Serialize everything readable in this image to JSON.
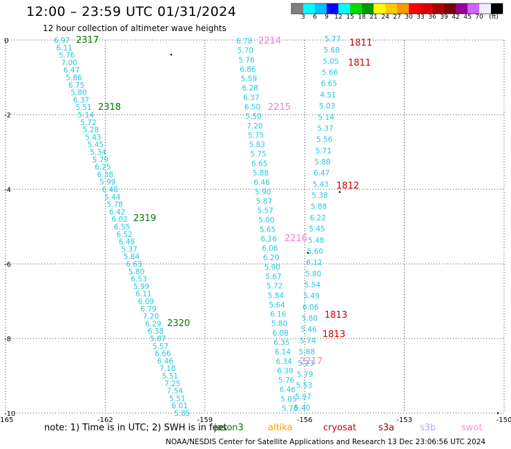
{
  "header": {
    "title": "12:00 – 23:59 UTC 01/31/2024",
    "subtitle": "12 hour collection of altimeter wave heights"
  },
  "colorbar": {
    "colors": [
      "#808080",
      "#00ffff",
      "#00c0ff",
      "#0000ff",
      "#00ffff",
      "#00dd00",
      "#009900",
      "#ffff00",
      "#ffcc00",
      "#ff9900",
      "#ff0000",
      "#dd0000",
      "#aa0000",
      "#770000",
      "#990099",
      "#cc66ff",
      "#eeeeff",
      "#000000"
    ],
    "labels": [
      "3",
      "6",
      "9",
      "12",
      "15",
      "18",
      "21",
      "24",
      "27",
      "30",
      "33",
      "36",
      "39",
      "42",
      "45",
      "70",
      "(ft)"
    ]
  },
  "map": {
    "x_ticks": [
      -165,
      -162,
      -159,
      -156,
      -153,
      -150
    ],
    "x_tick_labels": [
      "-165",
      "-162",
      "-159",
      "-156",
      "-153",
      "-150"
    ],
    "y_ticks": [
      0,
      -2,
      -4,
      -6,
      -8,
      -10
    ],
    "y_tick_labels": [
      "0",
      "-2",
      "-4",
      "-6",
      "-8",
      "-10"
    ],
    "value_color": "#22c8dc",
    "tracks": [
      {
        "values": [
          "6.97",
          "6.11",
          "5.76",
          "7.00",
          "6.47",
          "5.86",
          "6.75",
          "5.80",
          "6.37",
          "5.51",
          "5.14",
          "5.72",
          "5.28",
          "5.43",
          "5.45",
          "5.34",
          "5.79",
          "6.25",
          "6.38",
          "5.99",
          "6.48",
          "5.44",
          "5.78",
          "6.42",
          "6.02",
          "6.55",
          "6.52",
          "6.48",
          "5.37",
          "5.84",
          "6.63",
          "5.80",
          "6.53",
          "5.99",
          "6.11",
          "6.09",
          "6.79",
          "7.20",
          "6.29",
          "6.38",
          "5.87",
          "5.57",
          "6.66",
          "6.46",
          "7.18",
          "5.51",
          "7.25",
          "7.54",
          "5.51",
          "6.01",
          "5.85"
        ]
      },
      {
        "values": [
          "6.78",
          "5.70",
          "5.76",
          "6.86",
          "5.59",
          "6.28",
          "6.37",
          "6.50",
          "5.50",
          "7.20",
          "5.75",
          "5.83",
          "5.75",
          "6.65",
          "5.88",
          "6.46",
          "5.90",
          "5.87",
          "5.57",
          "5.00",
          "5.65",
          "6.16",
          "6.06",
          "6.20",
          "5.90",
          "5.67",
          "5.72",
          "5.84",
          "5.64",
          "6.16",
          "5.80",
          "6.08",
          "6.35",
          "6.14",
          "6.34",
          "6.39",
          "5.76",
          "6.46",
          "5.05",
          "5.76"
        ]
      },
      {
        "values": [
          "5.77",
          "5.68",
          "5.05",
          "5.66",
          "6.65",
          "4.51",
          "5.03",
          "5.14",
          "5.37",
          "5.56",
          "5.71",
          "5.88",
          "6.47",
          "5.43",
          "5.38",
          "5.88",
          "6.22",
          "5.45",
          "5.48",
          "5.60",
          "6.12",
          "5.80",
          "5.54",
          "5.49",
          "6.06",
          "5.80",
          "5.46",
          "5.74",
          "5.88",
          "5.23",
          "5.79",
          "5.53",
          "5.97",
          "5.40"
        ]
      }
    ],
    "labels": [
      {
        "text": "2317",
        "color": "#007700"
      },
      {
        "text": "2318",
        "color": "#007700"
      },
      {
        "text": "2319",
        "color": "#007700"
      },
      {
        "text": "2320",
        "color": "#007700"
      },
      {
        "text": "2214",
        "color": "#ff77cc"
      },
      {
        "text": "2215",
        "color": "#ff77cc"
      },
      {
        "text": "2216",
        "color": "#ff77cc"
      },
      {
        "text": "2217",
        "color": "#ff77cc"
      },
      {
        "text": "1811",
        "color": "#cc0000"
      },
      {
        "text": "1811",
        "color": "#cc0000"
      },
      {
        "text": "1812",
        "color": "#cc0000"
      },
      {
        "text": "1813",
        "color": "#cc0000"
      },
      {
        "text": "1813",
        "color": "#cc0000"
      }
    ]
  },
  "note": "note:  1) Time is in UTC;  2) SWH is in feet",
  "satellites": [
    {
      "name": "jason3",
      "color": "#007700"
    },
    {
      "name": "altika",
      "color": "#ff9900"
    },
    {
      "name": "cryosat",
      "color": "#cc0000"
    },
    {
      "name": "s3a",
      "color": "#990000"
    },
    {
      "name": "s3b",
      "color": "#aaaaff"
    },
    {
      "name": "swot",
      "color": "#ff88dd"
    }
  ],
  "footer": "NOAA/NESDIS Center for Satellite Applications and Research     13 Dec 23:06:56 UTC 2024"
}
